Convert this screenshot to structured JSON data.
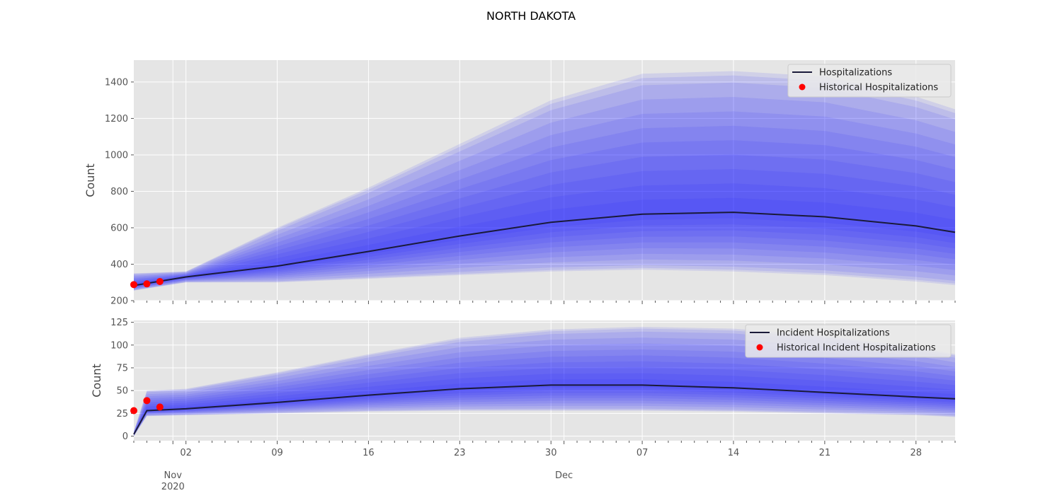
{
  "title": "NORTH DAKOTA",
  "colors": {
    "panel_bg": "#e5e5e5",
    "grid": "#ffffff",
    "band": "#2020ff",
    "median_line": "#1a1a3a",
    "observed_points": "#ff0000",
    "tick_text": "#555555",
    "label_text": "#444444"
  },
  "x_axis": {
    "range": [
      "2020-10-29",
      "2020-12-31"
    ],
    "major_tick_labels": [
      {
        "date": "2020-11-02",
        "label": "02"
      },
      {
        "date": "2020-11-09",
        "label": "09"
      },
      {
        "date": "2020-11-16",
        "label": "16"
      },
      {
        "date": "2020-11-23",
        "label": "23"
      },
      {
        "date": "2020-11-30",
        "label": "30"
      },
      {
        "date": "2020-12-07",
        "label": "07"
      },
      {
        "date": "2020-12-14",
        "label": "14"
      },
      {
        "date": "2020-12-21",
        "label": "21"
      },
      {
        "date": "2020-12-28",
        "label": "28"
      }
    ],
    "month_labels": [
      {
        "date": "2020-11-01",
        "label": "Nov",
        "year": "2020"
      },
      {
        "date": "2020-12-01",
        "label": "Dec",
        "year": ""
      }
    ],
    "minor_ticks": "daily"
  },
  "chart_data": [
    {
      "type": "area",
      "ylabel": "Count",
      "ylim": [
        200,
        1520
      ],
      "yticks": [
        200,
        400,
        600,
        800,
        1000,
        1200,
        1400
      ],
      "grid": true,
      "legend_position": "top-right",
      "legend": [
        "Hospitalizations",
        "Historical Hospitalizations"
      ],
      "band_levels": [
        0.1,
        0.2,
        0.3,
        0.4,
        0.5,
        0.6,
        0.7,
        0.8,
        0.9,
        0.95,
        0.98
      ],
      "x": [
        "2020-10-29",
        "2020-11-02",
        "2020-11-09",
        "2020-11-16",
        "2020-11-23",
        "2020-11-30",
        "2020-12-07",
        "2020-12-14",
        "2020-12-21",
        "2020-12-28",
        "2020-12-31"
      ],
      "median": [
        283,
        330,
        390,
        470,
        555,
        630,
        675,
        685,
        660,
        610,
        575
      ],
      "lower_98": [
        255,
        300,
        300,
        320,
        340,
        360,
        370,
        360,
        340,
        305,
        285
      ],
      "upper_98": [
        350,
        360,
        600,
        820,
        1060,
        1300,
        1445,
        1460,
        1430,
        1320,
        1250
      ],
      "observed": {
        "name": "Historical Hospitalizations",
        "x": [
          "2020-10-29",
          "2020-10-30",
          "2020-10-31"
        ],
        "y": [
          288,
          292,
          305
        ]
      }
    },
    {
      "type": "area",
      "ylabel": "Count",
      "ylim": [
        -5,
        127
      ],
      "yticks": [
        0,
        25,
        50,
        75,
        100,
        125
      ],
      "grid": true,
      "legend_position": "top-right",
      "legend": [
        "Incident Hospitalizations",
        "Historical Incident Hospitalizations"
      ],
      "band_levels": [
        0.1,
        0.2,
        0.3,
        0.4,
        0.5,
        0.6,
        0.7,
        0.8,
        0.9,
        0.95,
        0.98
      ],
      "x": [
        "2020-10-29",
        "2020-10-30",
        "2020-11-02",
        "2020-11-09",
        "2020-11-16",
        "2020-11-23",
        "2020-11-30",
        "2020-12-07",
        "2020-12-14",
        "2020-12-21",
        "2020-12-28",
        "2020-12-31"
      ],
      "median": [
        2,
        28,
        30,
        37,
        45,
        52,
        56,
        56,
        53,
        48,
        43,
        41
      ],
      "lower_98": [
        0,
        22,
        23,
        25,
        27,
        28,
        28,
        28,
        27,
        25,
        23,
        21
      ],
      "upper_98": [
        5,
        50,
        52,
        70,
        90,
        108,
        117,
        120,
        118,
        110,
        98,
        90
      ],
      "observed": {
        "name": "Historical Incident Hospitalizations",
        "x": [
          "2020-10-29",
          "2020-10-30",
          "2020-10-31"
        ],
        "y": [
          28,
          39,
          32
        ]
      }
    }
  ]
}
